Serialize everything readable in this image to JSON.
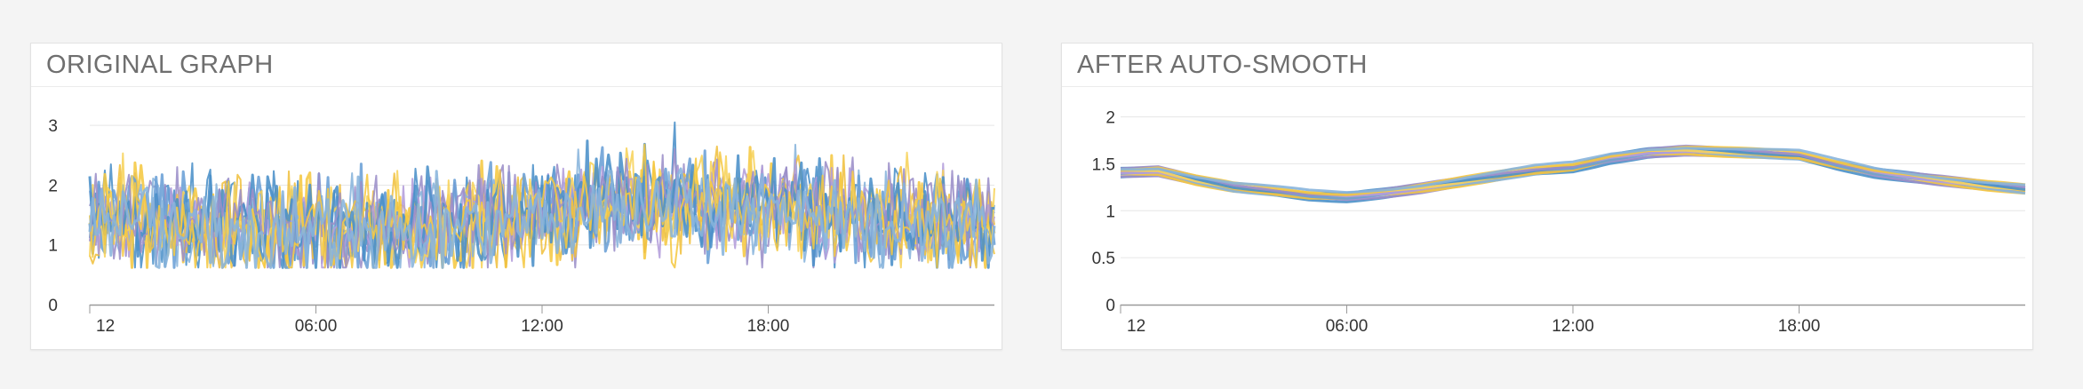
{
  "chart_data": [
    {
      "type": "line",
      "title": "ORIGINAL GRAPH",
      "xlabel": "",
      "ylabel": "",
      "x_tick_labels": [
        "12",
        "06:00",
        "12:00",
        "18:00"
      ],
      "x_tick_hours": [
        0,
        6,
        12,
        18
      ],
      "x_range_hours": [
        0,
        24
      ],
      "y_ticks": [
        0,
        1,
        2,
        3
      ],
      "y_tick_labels": [
        "0",
        "1",
        "2",
        "3"
      ],
      "ylim": [
        0,
        3.3
      ],
      "grid": true,
      "series_count": 12,
      "series_colors": [
        "#4a90c8",
        "#9b8ec8",
        "#f5c842",
        "#87b4dc",
        "#f0c040",
        "#6a9fd6",
        "#b39ddb",
        "#f7d35a"
      ],
      "baseline_profile": {
        "hours": [
          0,
          2,
          4,
          6,
          8,
          10,
          12,
          14,
          16,
          18,
          20,
          22,
          24
        ],
        "values": [
          1.42,
          1.38,
          1.28,
          1.22,
          1.26,
          1.36,
          1.55,
          1.7,
          1.72,
          1.62,
          1.45,
          1.35,
          1.3
        ]
      },
      "noise_amplitude": 0.45,
      "peak": {
        "hour": 15.5,
        "value": 3.05
      }
    },
    {
      "type": "line",
      "title": "AFTER AUTO-SMOOTH",
      "xlabel": "",
      "ylabel": "",
      "x_tick_labels": [
        "12",
        "06:00",
        "12:00",
        "18:00"
      ],
      "x_tick_hours": [
        0,
        6,
        12,
        18
      ],
      "x_range_hours": [
        0,
        24
      ],
      "y_ticks": [
        0,
        0.5,
        1,
        1.5,
        2
      ],
      "y_tick_labels": [
        "0",
        "0.5",
        "1",
        "1.5",
        "2"
      ],
      "ylim": [
        0,
        2.1
      ],
      "grid": true,
      "series_count": 12,
      "series_colors": [
        "#4a90c8",
        "#9b8ec8",
        "#f5c842",
        "#87b4dc",
        "#f0c040",
        "#6a9fd6",
        "#b39ddb",
        "#f7d35a"
      ],
      "baseline_profile": {
        "hours": [
          0,
          1,
          2,
          3,
          4,
          5,
          6,
          7,
          8,
          9,
          10,
          11,
          12,
          13,
          14,
          15,
          16,
          17,
          18,
          19,
          20,
          21,
          22,
          23,
          24
        ],
        "values": [
          1.47,
          1.48,
          1.38,
          1.3,
          1.26,
          1.22,
          1.21,
          1.25,
          1.3,
          1.36,
          1.42,
          1.48,
          1.52,
          1.62,
          1.68,
          1.7,
          1.68,
          1.66,
          1.64,
          1.55,
          1.47,
          1.42,
          1.37,
          1.32,
          1.28
        ]
      },
      "series_spread": 0.1
    }
  ]
}
